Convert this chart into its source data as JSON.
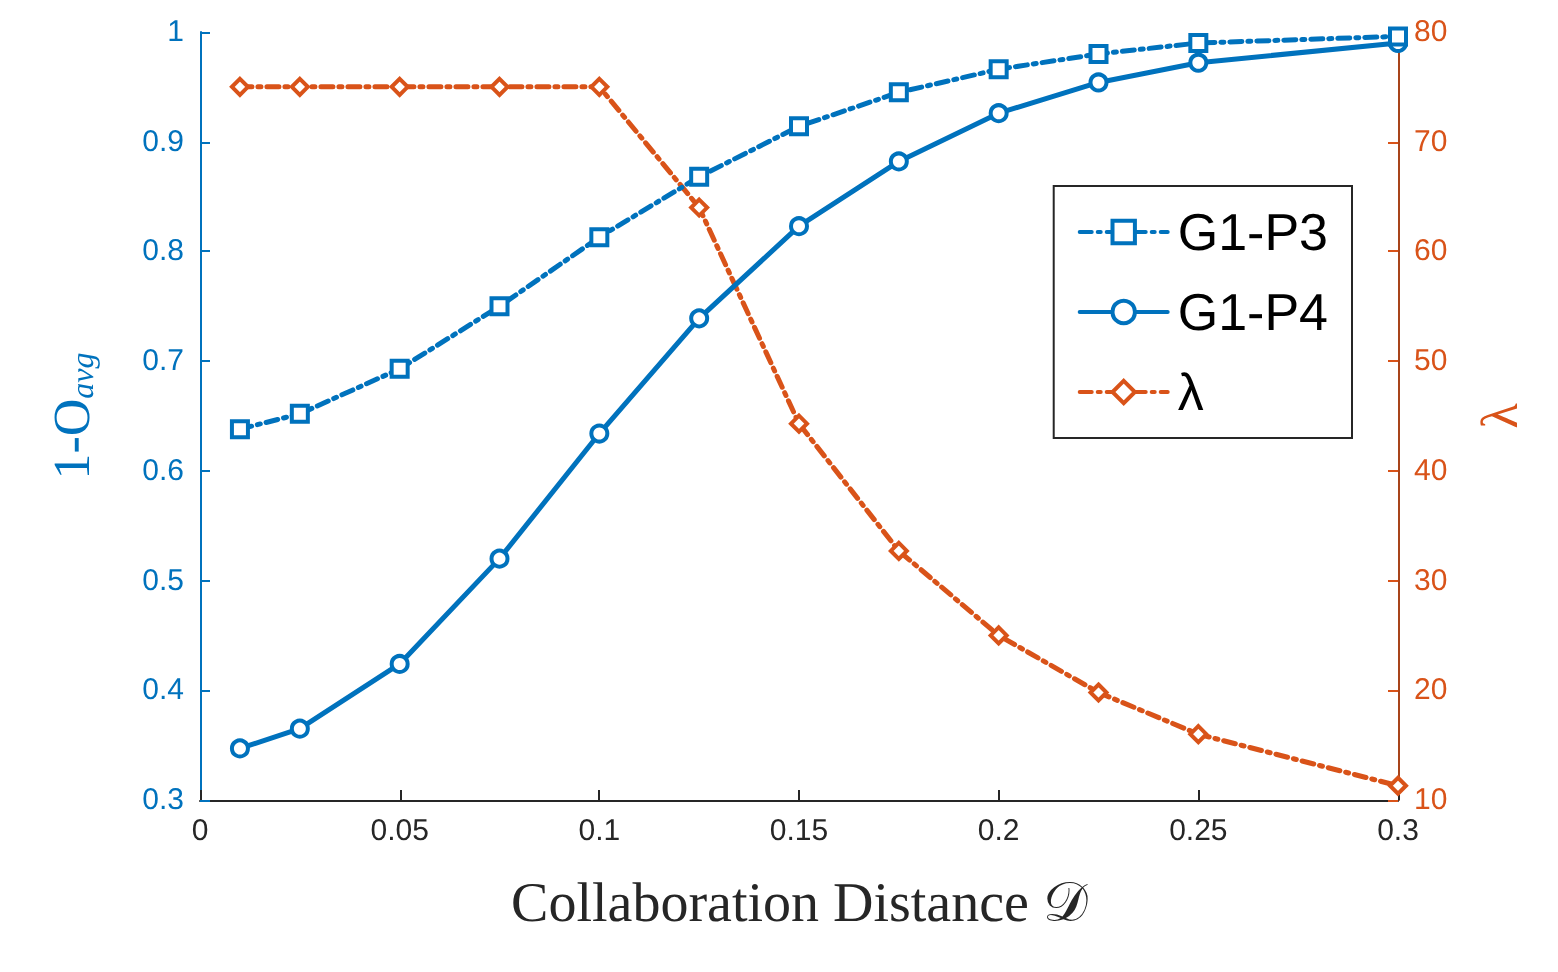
{
  "chart_data": {
    "type": "line",
    "xlabel": "Collaboration Distance 𝒟",
    "ylabel": "1-O$_{avg}$",
    "y2label": "λ",
    "x": [
      0.01,
      0.025,
      0.05,
      0.075,
      0.1,
      0.125,
      0.15,
      0.175,
      0.2,
      0.225,
      0.25,
      0.3
    ],
    "series": [
      {
        "name": "G1-P3",
        "color": "#0072bd",
        "marker": "square",
        "line_style": "dashed",
        "values": [
          0.638,
          0.652,
          0.693,
          0.75,
          0.813,
          0.868,
          0.914,
          0.945,
          0.966,
          0.98,
          0.99,
          0.996
        ]
      },
      {
        "name": "G1-P4",
        "color": "#0072bd",
        "marker": "circle",
        "line_style": "solid",
        "values": [
          0.347,
          0.365,
          0.424,
          0.52,
          0.634,
          0.739,
          0.823,
          0.882,
          0.926,
          0.954,
          0.972,
          0.99
        ]
      },
      {
        "name": "λ",
        "color": "#d95319",
        "marker": "diamond",
        "line_style": "dashed",
        "axis": "y2",
        "values": [
          75,
          75,
          75,
          75,
          75,
          64,
          44.3,
          32.7,
          25,
          19.8,
          16,
          11.3
        ]
      }
    ],
    "xlim": [
      0,
      0.3
    ],
    "xticks": [
      0,
      0.05,
      0.1,
      0.15,
      0.2,
      0.25,
      0.3
    ],
    "ylim": [
      0.3,
      1
    ],
    "yticks": [
      0.3,
      0.4,
      0.5,
      0.6,
      0.7,
      0.8,
      0.9,
      1
    ],
    "y2lim": [
      10,
      80
    ],
    "y2ticks": [
      10,
      20,
      30,
      40,
      50,
      60,
      70,
      80
    ],
    "grid": false,
    "legend": "right"
  }
}
